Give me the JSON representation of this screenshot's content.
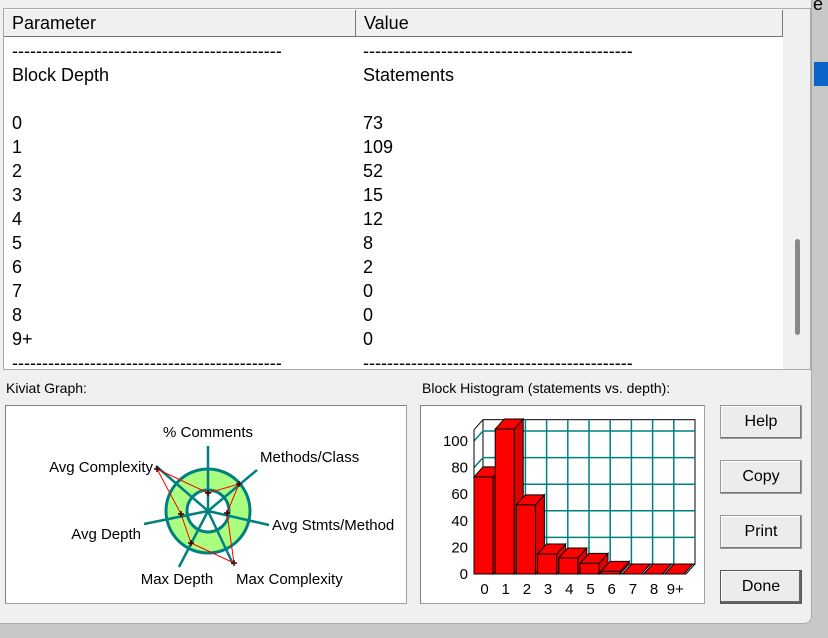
{
  "table": {
    "headers": [
      "Parameter",
      "Value"
    ],
    "separator_left": "---------------------------------------------",
    "separator_right": "---------------------------------------------",
    "subheader": [
      "Block Depth",
      "Statements"
    ],
    "rows": [
      [
        "0",
        "73"
      ],
      [
        "1",
        "109"
      ],
      [
        "2",
        "52"
      ],
      [
        "3",
        "15"
      ],
      [
        "4",
        "12"
      ],
      [
        "5",
        "8"
      ],
      [
        "6",
        "2"
      ],
      [
        "7",
        "0"
      ],
      [
        "8",
        "0"
      ],
      [
        "9+",
        "0"
      ]
    ]
  },
  "kiviat": {
    "title": "Kiviat Graph:",
    "axes": [
      "% Comments",
      "Methods/Class",
      "Avg Stmts/Method",
      "Max Complexity",
      "Max Depth",
      "Avg Depth",
      "Avg Complexity"
    ]
  },
  "chart_data": {
    "type": "bar",
    "title": "Block Histogram (statements vs. depth):",
    "categories": [
      "0",
      "1",
      "2",
      "3",
      "4",
      "5",
      "6",
      "7",
      "8",
      "9+"
    ],
    "values": [
      73,
      109,
      52,
      15,
      12,
      8,
      2,
      0,
      0,
      0
    ],
    "yticks": [
      "0",
      "20",
      "40",
      "60",
      "80",
      "100"
    ],
    "ylim": [
      0,
      110
    ],
    "xlabel": "",
    "ylabel": "",
    "bar_color": "#ff0000",
    "grid_color": "#008080"
  },
  "buttons": {
    "help": "Help",
    "copy": "Copy",
    "print": "Print",
    "done": "Done"
  },
  "background_text": "e"
}
